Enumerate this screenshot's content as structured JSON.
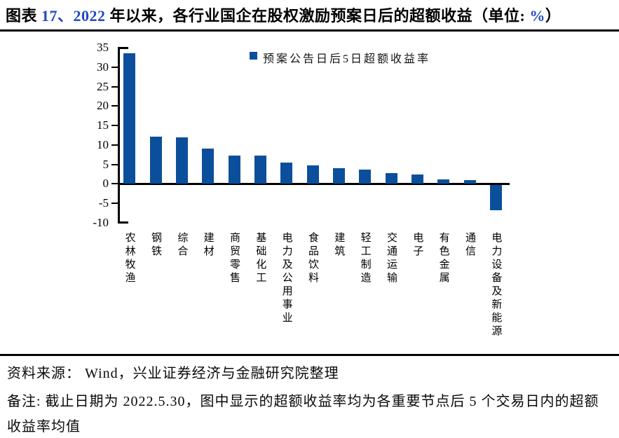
{
  "title": {
    "prefix": "图表 ",
    "number": "17、2022",
    "middle": " 年以来，各行业国企在股权激励预案日后的超额收益（单位: ",
    "unit": "%",
    "suffix": "）"
  },
  "colors": {
    "bar_blue": "#0B4F9C",
    "title_accent_blue": "#2347C5",
    "axis_black": "#000000"
  },
  "legend": {
    "label": "预案公告日后5日超额收益率"
  },
  "chart_data": {
    "type": "bar",
    "title": "2022年以来，各行业国企在股权激励预案日后的超额收益",
    "unit": "%",
    "series_name": "预案公告日后5日超额收益率",
    "categories": [
      "农林牧渔",
      "钢铁",
      "综合",
      "建材",
      "商贸零售",
      "基础化工",
      "电力及公用事业",
      "食品饮料",
      "建筑",
      "轻工制造",
      "交通运输",
      "电子",
      "有色金属",
      "通信",
      "电力设备及新能源"
    ],
    "values": [
      33.5,
      12.1,
      11.9,
      9.0,
      7.3,
      7.2,
      5.4,
      4.8,
      4.0,
      3.6,
      2.8,
      2.4,
      1.2,
      0.9,
      -6.5
    ],
    "ylim": [
      -10,
      35
    ],
    "yticks": [
      35,
      30,
      25,
      20,
      15,
      10,
      5,
      0,
      -5,
      -10
    ],
    "grid": false,
    "legend_position": "top-center"
  },
  "footer": {
    "source": "资料来源： Wind，兴业证券经济与金融研究院整理",
    "note_lines": [
      "备注: 截止日期为 2022.5.30，图中显示的超额收益率均为各重要节点后 5 个交易日内的超额",
      "收益率均值"
    ]
  }
}
